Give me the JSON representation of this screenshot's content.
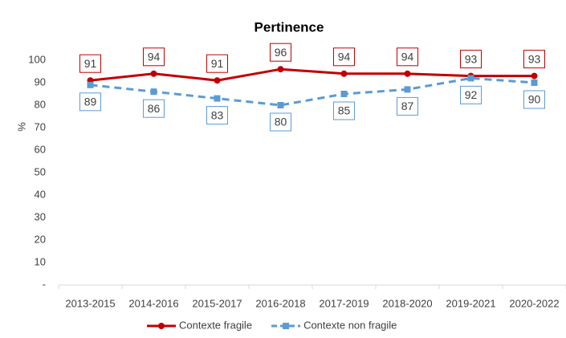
{
  "chart_data": {
    "type": "line",
    "title": "Pertinence",
    "y_label": "%",
    "categories": [
      "2013-2015",
      "2014-2016",
      "2015-2017",
      "2016-2018",
      "2017-2019",
      "2018-2020",
      "2019-2021",
      "2020-2022"
    ],
    "series": [
      {
        "name": "Contexte fragile",
        "color": "#c00000",
        "dash": false,
        "values": [
          91,
          94,
          91,
          96,
          94,
          94,
          93,
          93
        ]
      },
      {
        "name": "Contexte non fragile",
        "color": "#5b9bd5",
        "dash": true,
        "values": [
          89,
          86,
          83,
          80,
          85,
          87,
          92,
          90
        ]
      }
    ],
    "ylim": [
      0,
      110
    ],
    "yticks": [
      {
        "value": 0,
        "label": "-"
      },
      10,
      20,
      30,
      40,
      50,
      60,
      70,
      80,
      90,
      100
    ],
    "grid": false,
    "legend": "bottom"
  }
}
